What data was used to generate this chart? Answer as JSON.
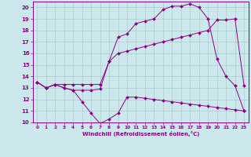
{
  "title": "",
  "xlabel": "Windchill (Refroidissement éolien,°C)",
  "xlim": [
    -0.5,
    23.5
  ],
  "ylim": [
    10,
    20.5
  ],
  "xticks": [
    0,
    1,
    2,
    3,
    4,
    5,
    6,
    7,
    8,
    9,
    10,
    11,
    12,
    13,
    14,
    15,
    16,
    17,
    18,
    19,
    20,
    21,
    22,
    23
  ],
  "yticks": [
    10,
    11,
    12,
    13,
    14,
    15,
    16,
    17,
    18,
    19,
    20
  ],
  "bg_color": "#cce8ec",
  "line_color": "#8b008b",
  "grid_color": "#aacccc",
  "line1_x": [
    0,
    1,
    2,
    3,
    4,
    5,
    6,
    7,
    8,
    9,
    10,
    11,
    12,
    13,
    14,
    15,
    16,
    17,
    18,
    19,
    20,
    21,
    22,
    23
  ],
  "line1_y": [
    13.5,
    13.0,
    13.3,
    13.0,
    12.8,
    11.8,
    10.8,
    9.9,
    10.3,
    10.8,
    12.2,
    12.2,
    12.1,
    12.0,
    11.9,
    11.8,
    11.7,
    11.6,
    11.5,
    11.4,
    11.3,
    11.2,
    11.1,
    11.0
  ],
  "line2_x": [
    0,
    1,
    2,
    3,
    4,
    5,
    6,
    7,
    8,
    9,
    10,
    11,
    12,
    13,
    14,
    15,
    16,
    17,
    18,
    19,
    20,
    21,
    22,
    23
  ],
  "line2_y": [
    13.5,
    13.0,
    13.3,
    13.3,
    13.3,
    13.3,
    13.3,
    13.3,
    15.3,
    16.0,
    16.2,
    16.4,
    16.6,
    16.8,
    17.0,
    17.2,
    17.4,
    17.6,
    17.8,
    18.0,
    18.9,
    18.9,
    19.0,
    13.2
  ],
  "line3_x": [
    0,
    1,
    2,
    3,
    4,
    5,
    6,
    7,
    8,
    9,
    10,
    11,
    12,
    13,
    14,
    15,
    16,
    17,
    18,
    19,
    20,
    21,
    22,
    23
  ],
  "line3_y": [
    13.5,
    13.0,
    13.3,
    13.0,
    12.8,
    12.8,
    12.8,
    12.9,
    15.3,
    17.4,
    17.7,
    18.6,
    18.8,
    19.0,
    19.8,
    20.1,
    20.1,
    20.3,
    20.0,
    19.0,
    15.5,
    14.0,
    13.2,
    11.0
  ]
}
